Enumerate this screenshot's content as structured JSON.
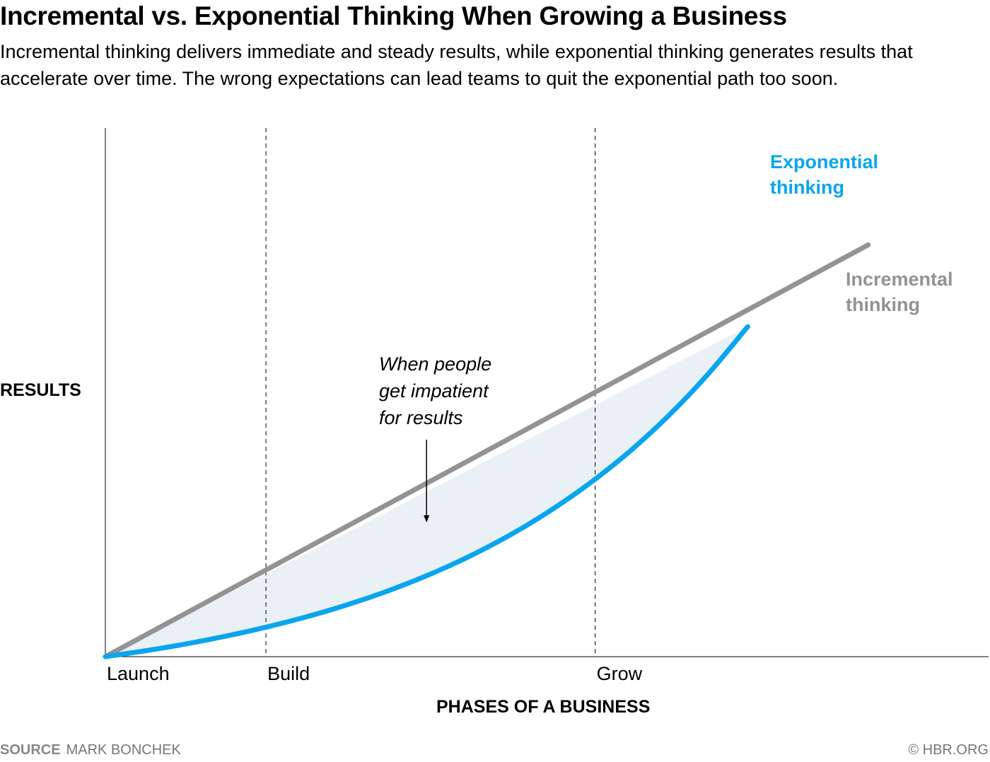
{
  "title": "Incremental vs. Exponential Thinking When Growing a Business",
  "subtitle": "Incremental thinking delivers immediate and steady results, while exponential thinking generates results that accelerate over time. The wrong expectations can lead teams to quit the exponential path too soon.",
  "chart_data": {
    "type": "line",
    "xlabel": "PHASES OF A BUSINESS",
    "ylabel": "RESULTS",
    "x_phases": [
      {
        "label": "Launch",
        "x": 0
      },
      {
        "label": "Build",
        "x": 1
      },
      {
        "label": "Grow",
        "x": 3.05
      }
    ],
    "xlim": [
      0,
      5.5
    ],
    "ylim": [
      0,
      3.3
    ],
    "grid": false,
    "series": [
      {
        "name": "Incremental thinking",
        "color": "#939393",
        "x": [
          0,
          4.75
        ],
        "y": [
          0,
          2.57
        ]
      },
      {
        "name": "Exponential thinking",
        "color": "#0aa5ee",
        "x": [
          0,
          0.25,
          0.5,
          0.75,
          1.0,
          1.25,
          1.5,
          1.75,
          2.0,
          2.25,
          2.5,
          2.75,
          3.0,
          3.25,
          3.5,
          3.75,
          4.0
        ],
        "y": [
          0,
          0.037,
          0.079,
          0.128,
          0.184,
          0.248,
          0.322,
          0.407,
          0.505,
          0.618,
          0.748,
          0.898,
          1.07,
          1.268,
          1.497,
          1.76,
          2.06
        ]
      }
    ],
    "annotation": {
      "text_lines": [
        "When people",
        "get impatient",
        "for results"
      ],
      "arrow_x": 2.0
    },
    "shaded_gap": true
  },
  "footer": {
    "source_label": "SOURCE",
    "source_text": "MARK BONCHEK",
    "credit": "© HBR.ORG"
  }
}
